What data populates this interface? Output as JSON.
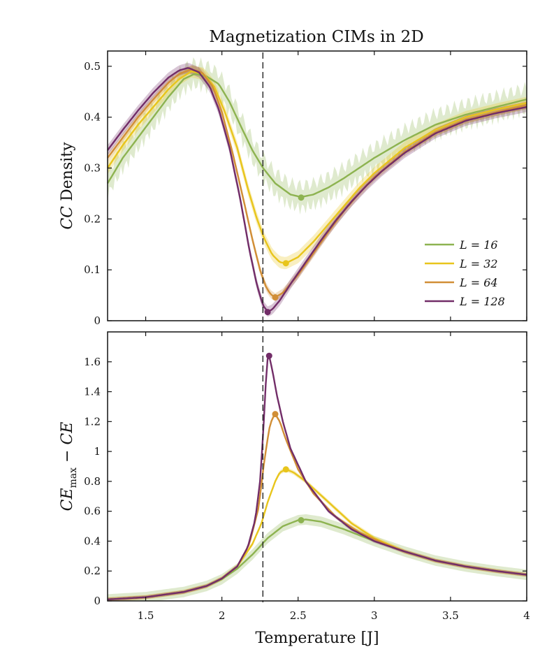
{
  "title": "Magnetization CIMs in 2D",
  "chart_data": [
    {
      "type": "line",
      "panel": "top",
      "title": "Magnetization CIMs in 2D",
      "xlabel": "",
      "ylabel": "CC Density",
      "xlim": [
        1.25,
        4.0
      ],
      "ylim": [
        0,
        0.53
      ],
      "xticks": [
        1.5,
        2,
        2.5,
        3,
        3.5,
        4
      ],
      "yticks": [
        0,
        0.1,
        0.2,
        0.3,
        0.4,
        0.5
      ],
      "ytick_labels": [
        "0",
        "0.1",
        "0.2",
        "0.3",
        "0.4",
        "0.5"
      ],
      "vline_x": 2.269,
      "legend_placement": "lower-right",
      "legend_labels": [
        "L = 16",
        "L = 32",
        "L = 64",
        "L = 128"
      ],
      "series": [
        {
          "name": "L = 16",
          "color": "#8db350",
          "band": 0.022,
          "x": [
            1.25,
            1.35,
            1.45,
            1.55,
            1.65,
            1.75,
            1.82,
            1.9,
            1.98,
            2.05,
            2.12,
            2.2,
            2.27,
            2.35,
            2.45,
            2.52,
            2.6,
            2.7,
            2.8,
            2.9,
            3.0,
            3.2,
            3.4,
            3.6,
            3.8,
            4.0
          ],
          "y": [
            0.27,
            0.32,
            0.36,
            0.4,
            0.44,
            0.475,
            0.485,
            0.48,
            0.465,
            0.43,
            0.385,
            0.335,
            0.3,
            0.27,
            0.248,
            0.243,
            0.248,
            0.262,
            0.28,
            0.3,
            0.32,
            0.355,
            0.385,
            0.405,
            0.42,
            0.435
          ],
          "marker": [
            2.52,
            0.242
          ]
        },
        {
          "name": "L = 32",
          "color": "#e8c51c",
          "band": 0.012,
          "x": [
            1.25,
            1.35,
            1.45,
            1.55,
            1.65,
            1.72,
            1.8,
            1.88,
            1.95,
            2.02,
            2.1,
            2.17,
            2.23,
            2.28,
            2.33,
            2.38,
            2.42,
            2.5,
            2.6,
            2.7,
            2.8,
            2.9,
            3.0,
            3.2,
            3.4,
            3.6,
            3.8,
            4.0
          ],
          "y": [
            0.3,
            0.345,
            0.385,
            0.42,
            0.455,
            0.475,
            0.49,
            0.485,
            0.46,
            0.41,
            0.34,
            0.26,
            0.2,
            0.16,
            0.13,
            0.115,
            0.113,
            0.125,
            0.155,
            0.19,
            0.225,
            0.26,
            0.29,
            0.34,
            0.375,
            0.4,
            0.415,
            0.428
          ],
          "marker": [
            2.42,
            0.113
          ]
        },
        {
          "name": "L = 64",
          "color": "#d18e36",
          "band": 0.008,
          "x": [
            1.25,
            1.35,
            1.45,
            1.55,
            1.65,
            1.72,
            1.8,
            1.87,
            1.94,
            2.0,
            2.07,
            2.14,
            2.2,
            2.25,
            2.29,
            2.32,
            2.35,
            2.4,
            2.5,
            2.6,
            2.7,
            2.8,
            2.9,
            3.0,
            3.2,
            3.4,
            3.6,
            3.8,
            4.0
          ],
          "y": [
            0.32,
            0.36,
            0.4,
            0.435,
            0.468,
            0.485,
            0.494,
            0.488,
            0.46,
            0.41,
            0.33,
            0.24,
            0.16,
            0.1,
            0.066,
            0.052,
            0.046,
            0.055,
            0.09,
            0.132,
            0.175,
            0.215,
            0.25,
            0.282,
            0.332,
            0.37,
            0.395,
            0.41,
            0.424
          ],
          "marker": [
            2.35,
            0.046
          ]
        },
        {
          "name": "L = 128",
          "color": "#722d68",
          "band": 0.01,
          "x": [
            1.25,
            1.35,
            1.45,
            1.55,
            1.65,
            1.72,
            1.78,
            1.85,
            1.92,
            1.98,
            2.05,
            2.12,
            2.18,
            2.23,
            2.27,
            2.3,
            2.33,
            2.38,
            2.45,
            2.55,
            2.65,
            2.75,
            2.85,
            2.95,
            3.05,
            3.2,
            3.4,
            3.6,
            3.8,
            4.0
          ],
          "y": [
            0.335,
            0.375,
            0.413,
            0.448,
            0.478,
            0.492,
            0.497,
            0.488,
            0.46,
            0.415,
            0.34,
            0.24,
            0.14,
            0.07,
            0.03,
            0.018,
            0.022,
            0.04,
            0.072,
            0.115,
            0.158,
            0.198,
            0.234,
            0.266,
            0.294,
            0.33,
            0.368,
            0.393,
            0.408,
            0.42
          ],
          "marker": [
            2.3,
            0.017
          ]
        }
      ]
    },
    {
      "type": "line",
      "panel": "bottom",
      "xlabel": "Temperature [J]",
      "ylabel": "CE_max − CE",
      "xlim": [
        1.25,
        4.0
      ],
      "ylim": [
        0,
        1.8
      ],
      "xticks": [
        1.5,
        2,
        2.5,
        3,
        3.5,
        4
      ],
      "xtick_labels": [
        "1.5",
        "2",
        "2.5",
        "3",
        "3.5",
        "4"
      ],
      "yticks": [
        0,
        0.2,
        0.4,
        0.6,
        0.8,
        1,
        1.2,
        1.4,
        1.6
      ],
      "ytick_labels": [
        "0",
        "0.2",
        "0.4",
        "0.6",
        "0.8",
        "1",
        "1.2",
        "1.4",
        "1.6"
      ],
      "vline_x": 2.269,
      "series": [
        {
          "name": "L = 16",
          "color": "#8db350",
          "band": 0.035,
          "x": [
            1.25,
            1.5,
            1.75,
            1.9,
            2.0,
            2.1,
            2.2,
            2.3,
            2.4,
            2.5,
            2.55,
            2.65,
            2.8,
            3.0,
            3.2,
            3.4,
            3.6,
            3.8,
            4.0
          ],
          "y": [
            0.01,
            0.025,
            0.06,
            0.1,
            0.145,
            0.215,
            0.31,
            0.42,
            0.5,
            0.54,
            0.545,
            0.53,
            0.48,
            0.4,
            0.33,
            0.27,
            0.23,
            0.2,
            0.175
          ],
          "marker": [
            2.52,
            0.54
          ]
        },
        {
          "name": "L = 32",
          "color": "#e8c51c",
          "band": 0.015,
          "x": [
            1.25,
            1.5,
            1.75,
            1.9,
            2.0,
            2.1,
            2.2,
            2.26,
            2.3,
            2.35,
            2.38,
            2.42,
            2.47,
            2.55,
            2.7,
            2.85,
            3.0,
            3.2,
            3.4,
            3.6,
            3.8,
            4.0
          ],
          "y": [
            0.01,
            0.025,
            0.06,
            0.1,
            0.15,
            0.23,
            0.38,
            0.52,
            0.66,
            0.8,
            0.86,
            0.88,
            0.86,
            0.8,
            0.66,
            0.52,
            0.42,
            0.33,
            0.27,
            0.23,
            0.2,
            0.175
          ],
          "marker": [
            2.42,
            0.88
          ]
        },
        {
          "name": "L = 64",
          "color": "#d18e36",
          "band": 0.012,
          "x": [
            1.25,
            1.5,
            1.75,
            1.9,
            2.0,
            2.1,
            2.18,
            2.24,
            2.28,
            2.31,
            2.33,
            2.35,
            2.38,
            2.42,
            2.5,
            2.6,
            2.75,
            2.9,
            3.05,
            3.2,
            3.4,
            3.6,
            3.8,
            4.0
          ],
          "y": [
            0.01,
            0.025,
            0.06,
            0.1,
            0.15,
            0.23,
            0.38,
            0.62,
            0.95,
            1.15,
            1.22,
            1.25,
            1.2,
            1.08,
            0.88,
            0.72,
            0.56,
            0.46,
            0.39,
            0.33,
            0.27,
            0.23,
            0.2,
            0.175
          ],
          "marker": [
            2.35,
            1.25
          ]
        },
        {
          "name": "L = 128",
          "color": "#722d68",
          "band": 0.012,
          "x": [
            1.25,
            1.5,
            1.75,
            1.9,
            2.0,
            2.1,
            2.17,
            2.22,
            2.25,
            2.27,
            2.29,
            2.3,
            2.31,
            2.33,
            2.36,
            2.4,
            2.45,
            2.55,
            2.7,
            2.85,
            3.0,
            3.2,
            3.4,
            3.6,
            3.8,
            4.0
          ],
          "y": [
            0.01,
            0.025,
            0.06,
            0.1,
            0.15,
            0.23,
            0.36,
            0.55,
            0.8,
            1.1,
            1.5,
            1.62,
            1.64,
            1.55,
            1.38,
            1.2,
            1.02,
            0.8,
            0.6,
            0.48,
            0.4,
            0.33,
            0.27,
            0.23,
            0.2,
            0.175
          ],
          "marker": [
            2.31,
            1.64
          ]
        }
      ]
    }
  ]
}
